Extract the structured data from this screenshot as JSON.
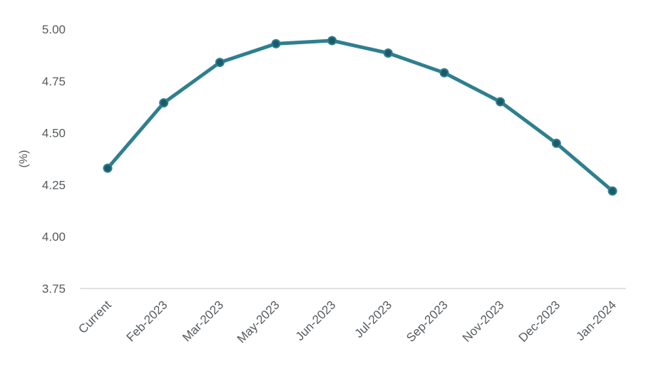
{
  "chart_data": {
    "type": "line",
    "title": "",
    "xlabel": "",
    "ylabel": "(%)",
    "categories": [
      "Current",
      "Feb-2023",
      "Mar-2023",
      "May-2023",
      "Jun-2023",
      "Jul-2023",
      "Sep-2023",
      "Nov-2023",
      "Dec-2023",
      "Jan-2024"
    ],
    "series": [
      {
        "values": [
          4.33,
          4.645,
          4.84,
          4.93,
          4.945,
          4.885,
          4.79,
          4.65,
          4.45,
          4.22
        ],
        "color": "#2e7f8f",
        "marker_color": "#1b5a68"
      }
    ],
    "ylim": [
      3.75,
      5.0
    ],
    "yticks": [
      "5.00",
      "4.75",
      "4.50",
      "4.25",
      "4.00",
      "3.75"
    ],
    "grid": false,
    "legend": "none"
  }
}
